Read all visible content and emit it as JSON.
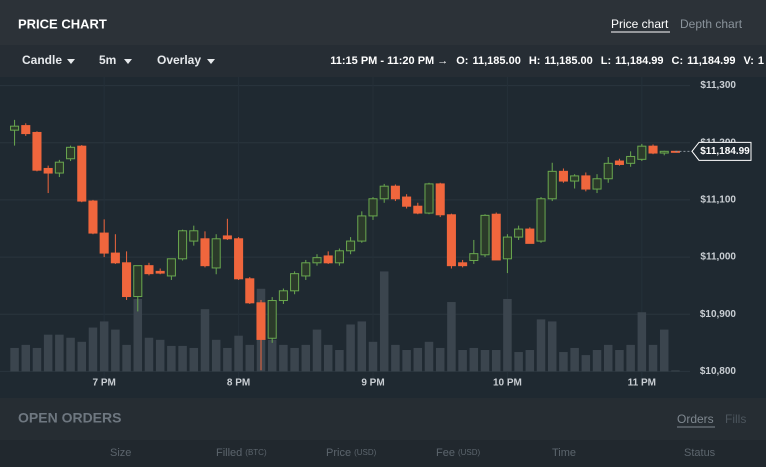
{
  "header": {
    "title": "PRICE CHART",
    "tabs": [
      "Price chart",
      "Depth chart"
    ]
  },
  "toolbar": {
    "menus": [
      "Candle",
      "5m",
      "Overlay"
    ],
    "range": "11:15 PM - 11:20 PM →",
    "stats": [
      {
        "label": "O:",
        "value": "11,185.00"
      },
      {
        "label": "H:",
        "value": "11,185.00"
      },
      {
        "label": "L:",
        "value": "11,184.99"
      },
      {
        "label": "C:",
        "value": "11,184.99"
      },
      {
        "label": "V:",
        "value": "1"
      }
    ]
  },
  "chart_data": {
    "type": "candlestick",
    "x": [
      0,
      1,
      2,
      3,
      4,
      5,
      6,
      7,
      8,
      9,
      10,
      11,
      12,
      13,
      14,
      15,
      16,
      17,
      18,
      19,
      20,
      21,
      22,
      23,
      24,
      25,
      26,
      27,
      28,
      29,
      30,
      31,
      32,
      33,
      34,
      35,
      36,
      37,
      38,
      39,
      40,
      41,
      42,
      43,
      44,
      45,
      46,
      47,
      48,
      49,
      50,
      51,
      52,
      53,
      54,
      55,
      56,
      57,
      58,
      59
    ],
    "open": [
      11222,
      11230,
      11218,
      11155,
      11147,
      11172,
      11194,
      11098,
      11042,
      11007,
      10990,
      10931,
      10985,
      10975,
      10967,
      10997,
      11028,
      11032,
      10981,
      11037,
      11032,
      10962,
      10920,
      10858,
      10924,
      10941,
      10967,
      10990,
      11002,
      10990,
      11011,
      11028,
      11072,
      11102,
      11124,
      11105,
      11089,
      11077,
      11128,
      11074,
      10990,
      10994,
      11004,
      11075,
      10997,
      11035,
      11049,
      11028,
      11102,
      11150,
      11133,
      11142,
      11119,
      11137,
      11168,
      11164,
      11171,
      11194,
      11182,
      11185
    ],
    "high": [
      11240,
      11234,
      11220,
      11160,
      11170,
      11195,
      11196,
      11100,
      11066,
      11040,
      11010,
      10985,
      10990,
      10980,
      10996,
      11048,
      11055,
      11045,
      11040,
      11067,
      11035,
      10965,
      10925,
      10930,
      10945,
      10975,
      10995,
      11005,
      11010,
      11015,
      11035,
      11080,
      11105,
      11128,
      11127,
      11110,
      11095,
      11130,
      11130,
      11076,
      10995,
      11030,
      11075,
      11078,
      11040,
      11055,
      11052,
      11105,
      11165,
      11155,
      11145,
      11148,
      11145,
      11175,
      11172,
      11185,
      11198,
      11197,
      11186,
      11185
    ],
    "low": [
      11195,
      11212,
      11150,
      11112,
      11140,
      11168,
      11096,
      11040,
      11000,
      10988,
      10925,
      10905,
      10968,
      10970,
      10960,
      10994,
      11020,
      10982,
      10970,
      11030,
      10960,
      10918,
      10802,
      10850,
      10918,
      10935,
      10960,
      10985,
      10988,
      10985,
      11005,
      11025,
      11065,
      11095,
      11098,
      11085,
      11075,
      11075,
      11070,
      10980,
      10982,
      10988,
      11000,
      10995,
      10972,
      11030,
      11025,
      11025,
      11098,
      11130,
      11120,
      11115,
      11112,
      11130,
      11160,
      11158,
      11168,
      11180,
      11178,
      11184.99
    ],
    "close": [
      11229,
      11216,
      11152,
      11147,
      11166,
      11192,
      11098,
      11042,
      11007,
      10990,
      10931,
      10985,
      10971,
      10972,
      10997,
      11046,
      11046,
      10985,
      11032,
      11032,
      10962,
      10920,
      10856,
      10924,
      10941,
      10971,
      10990,
      10999,
      10990,
      11011,
      11028,
      11072,
      11102,
      11124,
      11102,
      11089,
      11077,
      11128,
      11074,
      10985,
      10985,
      11006,
      11073,
      10995,
      11035,
      11049,
      11024,
      11102,
      11150,
      11133,
      11142,
      11119,
      11137,
      11164,
      11162,
      11176,
      11194,
      11182,
      11185,
      11184.99
    ],
    "volume": [
      23,
      26,
      23,
      36,
      36,
      33,
      29,
      43,
      49,
      41,
      26,
      71,
      33,
      31,
      25,
      25,
      23,
      61,
      31,
      23,
      35,
      26,
      81,
      31,
      26,
      23,
      26,
      41,
      26,
      21,
      46,
      49,
      29,
      98,
      26,
      21,
      23,
      29,
      23,
      68,
      21,
      23,
      21,
      21,
      71,
      19,
      21,
      51,
      49,
      19,
      23,
      16,
      21,
      26,
      21,
      26,
      58,
      26,
      41,
      1
    ],
    "last_price_label": "$11,184.99",
    "up_color": "#6aa84f",
    "down_color": "#f0663d",
    "volume_color": "#3b454e",
    "xlim": [
      -1.3,
      60.3
    ],
    "xticks": [
      {
        "value": 8,
        "label": "7 PM"
      },
      {
        "value": 20,
        "label": "8 PM"
      },
      {
        "value": 32,
        "label": "9 PM"
      },
      {
        "value": 44,
        "label": "10 PM"
      },
      {
        "value": 56,
        "label": "11 PM"
      }
    ],
    "ylim": [
      10785,
      11315
    ],
    "yticks": [
      {
        "value": 10800,
        "label": "$10,800"
      },
      {
        "value": 10900,
        "label": "$10,900"
      },
      {
        "value": 11000,
        "label": "$11,000"
      },
      {
        "value": 11100,
        "label": "$11,100"
      },
      {
        "value": 11200,
        "label": "$11,200"
      },
      {
        "value": 11300,
        "label": "$11,300"
      }
    ],
    "grid": true
  },
  "orders": {
    "title": "OPEN ORDERS",
    "tabs": [
      "Orders",
      "Fills"
    ],
    "columns": [
      {
        "name": "Size"
      },
      {
        "name": "Filled",
        "unit": "(BTC)"
      },
      {
        "name": "Price",
        "unit": "(USD)"
      },
      {
        "name": "Fee",
        "unit": "(USD)"
      },
      {
        "name": "Time"
      },
      {
        "name": "Status"
      }
    ]
  }
}
